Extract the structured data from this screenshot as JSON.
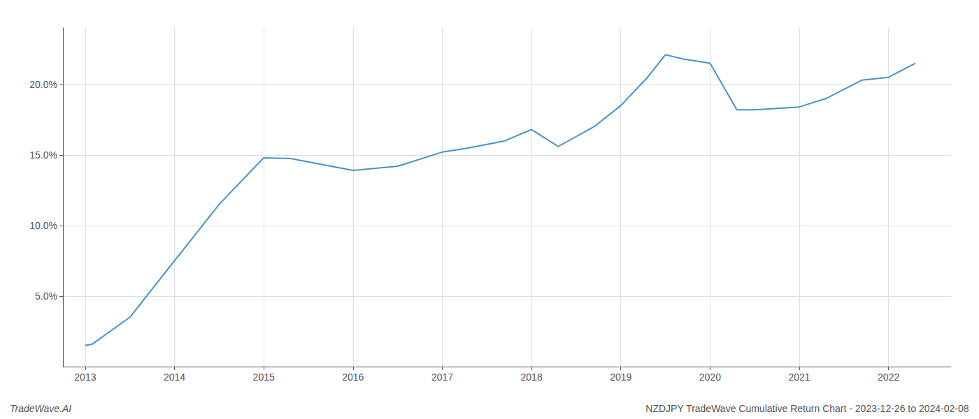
{
  "chart_data": {
    "type": "line",
    "x": [
      2013.0,
      2013.08,
      2013.5,
      2014.0,
      2014.5,
      2015.0,
      2015.3,
      2016.0,
      2016.5,
      2017.0,
      2017.3,
      2017.7,
      2018.0,
      2018.3,
      2018.7,
      2019.0,
      2019.3,
      2019.5,
      2019.7,
      2020.0,
      2020.3,
      2020.5,
      2021.0,
      2021.3,
      2021.7,
      2022.0,
      2022.3
    ],
    "values": [
      1.5,
      1.6,
      3.5,
      7.5,
      11.5,
      14.8,
      14.75,
      13.9,
      14.2,
      15.2,
      15.5,
      16.0,
      16.8,
      15.6,
      17.0,
      18.5,
      20.5,
      22.1,
      21.8,
      21.5,
      18.2,
      18.2,
      18.4,
      19.0,
      20.3,
      20.5,
      21.5
    ],
    "color": "#4a90c4",
    "xlim": [
      2012.75,
      2022.7
    ],
    "xticks": [
      2013,
      2014,
      2015,
      2016,
      2017,
      2018,
      2019,
      2020,
      2021,
      2022
    ],
    "ylim": [
      0,
      24
    ],
    "yticks": [
      {
        "value": 5.0,
        "label": "5.0%"
      },
      {
        "value": 10.0,
        "label": "10.0%"
      },
      {
        "value": 15.0,
        "label": "15.0%"
      },
      {
        "value": 20.0,
        "label": "20.0%"
      }
    ],
    "grid": true,
    "annotations": [
      "TradeWave.AI",
      "NZDJPY TradeWave Cumulative Return Chart - 2023-12-26 to 2024-02-08"
    ]
  }
}
